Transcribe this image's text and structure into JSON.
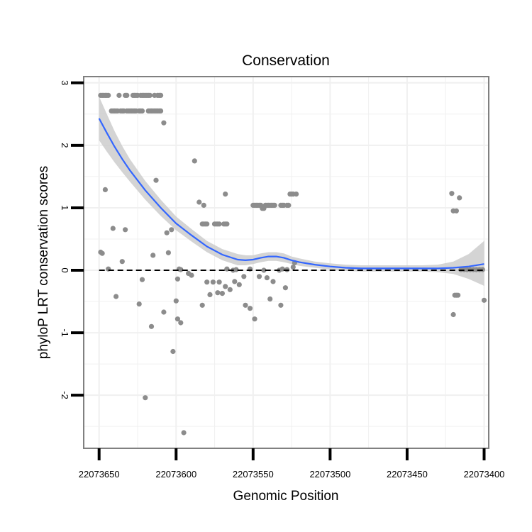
{
  "chart_data": {
    "type": "scatter",
    "title": "Conservation",
    "xlabel": "Genomic Position",
    "ylabel": "phyloP LRT conservation scores",
    "x_reversed": true,
    "xlim": [
      22073660,
      22073397
    ],
    "ylim": [
      -2.85,
      3.1
    ],
    "x_ticks": [
      22073650,
      22073600,
      22073550,
      22073500,
      22073450,
      22073400
    ],
    "x_tick_labels": [
      "22073650",
      "22073600",
      "22073550",
      "22073500",
      "22073450",
      "22073400"
    ],
    "y_ticks": [
      -2,
      -1,
      0,
      1,
      2,
      3
    ],
    "y_tick_labels": [
      "-2",
      "-1",
      "0",
      "1",
      "2",
      "3"
    ],
    "reference_line": {
      "y": 0,
      "style": "dashed",
      "color": "#000000"
    },
    "colors": {
      "points": "#8c8c8c",
      "smooth_line": "#3366ff",
      "confidence_band": "#cccccc",
      "panel_border": "#808080",
      "grid": "#f0f0f0"
    },
    "points": [
      {
        "x": 22073649,
        "y": 2.8
      },
      {
        "x": 22073648,
        "y": 2.8
      },
      {
        "x": 22073647,
        "y": 2.8
      },
      {
        "x": 22073646,
        "y": 2.8
      },
      {
        "x": 22073645,
        "y": 2.8
      },
      {
        "x": 22073644,
        "y": 2.8
      },
      {
        "x": 22073637,
        "y": 2.8
      },
      {
        "x": 22073633,
        "y": 2.8
      },
      {
        "x": 22073632,
        "y": 2.8
      },
      {
        "x": 22073628,
        "y": 2.8
      },
      {
        "x": 22073627,
        "y": 2.8
      },
      {
        "x": 22073626,
        "y": 2.8
      },
      {
        "x": 22073625,
        "y": 2.8
      },
      {
        "x": 22073623,
        "y": 2.8
      },
      {
        "x": 22073622,
        "y": 2.8
      },
      {
        "x": 22073621,
        "y": 2.8
      },
      {
        "x": 22073620,
        "y": 2.8
      },
      {
        "x": 22073619,
        "y": 2.8
      },
      {
        "x": 22073618,
        "y": 2.8
      },
      {
        "x": 22073617,
        "y": 2.8
      },
      {
        "x": 22073614,
        "y": 2.8
      },
      {
        "x": 22073612,
        "y": 2.8
      },
      {
        "x": 22073611,
        "y": 2.8
      },
      {
        "x": 22073610,
        "y": 2.8
      },
      {
        "x": 22073642,
        "y": 2.55
      },
      {
        "x": 22073641,
        "y": 2.55
      },
      {
        "x": 22073640,
        "y": 2.55
      },
      {
        "x": 22073639,
        "y": 2.55
      },
      {
        "x": 22073638,
        "y": 2.55
      },
      {
        "x": 22073636,
        "y": 2.55
      },
      {
        "x": 22073635,
        "y": 2.55
      },
      {
        "x": 22073634,
        "y": 2.55
      },
      {
        "x": 22073632,
        "y": 2.55
      },
      {
        "x": 22073631,
        "y": 2.55
      },
      {
        "x": 22073630,
        "y": 2.55
      },
      {
        "x": 22073629,
        "y": 2.55
      },
      {
        "x": 22073628,
        "y": 2.55
      },
      {
        "x": 22073627,
        "y": 2.55
      },
      {
        "x": 22073626,
        "y": 2.55
      },
      {
        "x": 22073624,
        "y": 2.55
      },
      {
        "x": 22073623,
        "y": 2.55
      },
      {
        "x": 22073622,
        "y": 2.55
      },
      {
        "x": 22073618,
        "y": 2.55
      },
      {
        "x": 22073617,
        "y": 2.55
      },
      {
        "x": 22073616,
        "y": 2.55
      },
      {
        "x": 22073615,
        "y": 2.55
      },
      {
        "x": 22073614,
        "y": 2.55
      },
      {
        "x": 22073613,
        "y": 2.55
      },
      {
        "x": 22073612,
        "y": 2.55
      },
      {
        "x": 22073611,
        "y": 2.55
      },
      {
        "x": 22073610,
        "y": 2.55
      },
      {
        "x": 22073608,
        "y": 2.36
      },
      {
        "x": 22073588,
        "y": 1.75
      },
      {
        "x": 22073646,
        "y": 1.29
      },
      {
        "x": 22073613,
        "y": 1.44
      },
      {
        "x": 22073568,
        "y": 1.22
      },
      {
        "x": 22073585,
        "y": 1.09
      },
      {
        "x": 22073582,
        "y": 1.04
      },
      {
        "x": 22073583,
        "y": 0.74
      },
      {
        "x": 22073582,
        "y": 0.74
      },
      {
        "x": 22073581,
        "y": 0.74
      },
      {
        "x": 22073580,
        "y": 0.74
      },
      {
        "x": 22073575,
        "y": 0.74
      },
      {
        "x": 22073574,
        "y": 0.74
      },
      {
        "x": 22073573,
        "y": 0.74
      },
      {
        "x": 22073572,
        "y": 0.74
      },
      {
        "x": 22073569,
        "y": 0.74
      },
      {
        "x": 22073568,
        "y": 0.74
      },
      {
        "x": 22073567,
        "y": 0.74
      },
      {
        "x": 22073550,
        "y": 1.04
      },
      {
        "x": 22073549,
        "y": 1.04
      },
      {
        "x": 22073548,
        "y": 1.04
      },
      {
        "x": 22073547,
        "y": 1.04
      },
      {
        "x": 22073546,
        "y": 1.04
      },
      {
        "x": 22073545,
        "y": 1.04
      },
      {
        "x": 22073544,
        "y": 0.99
      },
      {
        "x": 22073543,
        "y": 0.99
      },
      {
        "x": 22073542,
        "y": 1.04
      },
      {
        "x": 22073541,
        "y": 1.04
      },
      {
        "x": 22073540,
        "y": 1.04
      },
      {
        "x": 22073539,
        "y": 1.04
      },
      {
        "x": 22073538,
        "y": 1.04
      },
      {
        "x": 22073537,
        "y": 1.04
      },
      {
        "x": 22073536,
        "y": 1.04
      },
      {
        "x": 22073532,
        "y": 1.04
      },
      {
        "x": 22073531,
        "y": 1.04
      },
      {
        "x": 22073530,
        "y": 1.04
      },
      {
        "x": 22073528,
        "y": 1.04
      },
      {
        "x": 22073527,
        "y": 1.04
      },
      {
        "x": 22073526,
        "y": 1.22
      },
      {
        "x": 22073525,
        "y": 1.22
      },
      {
        "x": 22073524,
        "y": 1.22
      },
      {
        "x": 22073522,
        "y": 1.22
      },
      {
        "x": 22073641,
        "y": 0.67
      },
      {
        "x": 22073633,
        "y": 0.65
      },
      {
        "x": 22073606,
        "y": 0.6
      },
      {
        "x": 22073603,
        "y": 0.65
      },
      {
        "x": 22073649,
        "y": 0.29
      },
      {
        "x": 22073648,
        "y": 0.27
      },
      {
        "x": 22073635,
        "y": 0.14
      },
      {
        "x": 22073615,
        "y": 0.24
      },
      {
        "x": 22073605,
        "y": 0.28
      },
      {
        "x": 22073644,
        "y": 0.02
      },
      {
        "x": 22073598,
        "y": 0.02
      },
      {
        "x": 22073597,
        "y": 0.01
      },
      {
        "x": 22073592,
        "y": -0.05
      },
      {
        "x": 22073590,
        "y": -0.08
      },
      {
        "x": 22073567,
        "y": 0.02
      },
      {
        "x": 22073563,
        "y": 0.0
      },
      {
        "x": 22073561,
        "y": 0.01
      },
      {
        "x": 22073552,
        "y": 0.02
      },
      {
        "x": 22073543,
        "y": 0.0
      },
      {
        "x": 22073533,
        "y": 0.0
      },
      {
        "x": 22073531,
        "y": 0.02
      },
      {
        "x": 22073528,
        "y": 0.01
      },
      {
        "x": 22073524,
        "y": 0.05
      },
      {
        "x": 22073523,
        "y": 0.12
      },
      {
        "x": 22073639,
        "y": -0.42
      },
      {
        "x": 22073622,
        "y": -0.15
      },
      {
        "x": 22073599,
        "y": -0.14
      },
      {
        "x": 22073580,
        "y": -0.19
      },
      {
        "x": 22073576,
        "y": -0.19
      },
      {
        "x": 22073572,
        "y": -0.19
      },
      {
        "x": 22073570,
        "y": -0.37
      },
      {
        "x": 22073568,
        "y": -0.26
      },
      {
        "x": 22073565,
        "y": -0.31
      },
      {
        "x": 22073562,
        "y": -0.18
      },
      {
        "x": 22073559,
        "y": -0.23
      },
      {
        "x": 22073556,
        "y": -0.1
      },
      {
        "x": 22073546,
        "y": -0.1
      },
      {
        "x": 22073541,
        "y": -0.12
      },
      {
        "x": 22073537,
        "y": -0.18
      },
      {
        "x": 22073529,
        "y": -0.28
      },
      {
        "x": 22073578,
        "y": -0.39
      },
      {
        "x": 22073573,
        "y": -0.36
      },
      {
        "x": 22073583,
        "y": -0.56
      },
      {
        "x": 22073555,
        "y": -0.56
      },
      {
        "x": 22073552,
        "y": -0.61
      },
      {
        "x": 22073539,
        "y": -0.46
      },
      {
        "x": 22073532,
        "y": -0.56
      },
      {
        "x": 22073549,
        "y": -0.78
      },
      {
        "x": 22073624,
        "y": -0.54
      },
      {
        "x": 22073608,
        "y": -0.67
      },
      {
        "x": 22073600,
        "y": -0.49
      },
      {
        "x": 22073599,
        "y": -0.78
      },
      {
        "x": 22073597,
        "y": -0.84
      },
      {
        "x": 22073616,
        "y": -0.9
      },
      {
        "x": 22073602,
        "y": -1.3
      },
      {
        "x": 22073620,
        "y": -2.04
      },
      {
        "x": 22073595,
        "y": -2.6
      },
      {
        "x": 22073421,
        "y": 1.23
      },
      {
        "x": 22073420,
        "y": 0.95
      },
      {
        "x": 22073418,
        "y": 0.95
      },
      {
        "x": 22073416,
        "y": 1.16
      },
      {
        "x": 22073419,
        "y": -0.4
      },
      {
        "x": 22073418,
        "y": -0.4
      },
      {
        "x": 22073417,
        "y": -0.4
      },
      {
        "x": 22073420,
        "y": -0.71
      },
      {
        "x": 22073400,
        "y": -0.48
      },
      {
        "x": 22073415,
        "y": 0.01
      },
      {
        "x": 22073413,
        "y": 0.01
      },
      {
        "x": 22073411,
        "y": 0.01
      },
      {
        "x": 22073409,
        "y": 0.01
      },
      {
        "x": 22073407,
        "y": 0.01
      },
      {
        "x": 22073405,
        "y": 0.01
      },
      {
        "x": 22073403,
        "y": 0.01
      },
      {
        "x": 22073401,
        "y": 0.01
      }
    ],
    "smooth": {
      "x": [
        22073650,
        22073645,
        22073640,
        22073635,
        22073630,
        22073620,
        22073610,
        22073600,
        22073590,
        22073580,
        22073570,
        22073560,
        22073555,
        22073550,
        22073545,
        22073540,
        22073535,
        22073530,
        22073525,
        22073520,
        22073510,
        22073500,
        22073490,
        22073480,
        22073470,
        22073460,
        22073450,
        22073440,
        22073430,
        22073420,
        22073410,
        22073400
      ],
      "y": [
        2.43,
        2.2,
        1.98,
        1.78,
        1.6,
        1.28,
        1.0,
        0.75,
        0.56,
        0.38,
        0.25,
        0.17,
        0.16,
        0.17,
        0.2,
        0.22,
        0.22,
        0.2,
        0.16,
        0.13,
        0.09,
        0.06,
        0.04,
        0.03,
        0.03,
        0.03,
        0.03,
        0.03,
        0.03,
        0.04,
        0.06,
        0.1
      ],
      "lower": [
        2.08,
        1.9,
        1.73,
        1.57,
        1.42,
        1.13,
        0.87,
        0.64,
        0.46,
        0.29,
        0.16,
        0.08,
        0.08,
        0.1,
        0.13,
        0.15,
        0.15,
        0.13,
        0.1,
        0.07,
        0.04,
        0.01,
        -0.01,
        -0.02,
        -0.02,
        -0.02,
        -0.02,
        -0.02,
        -0.03,
        -0.06,
        -0.14,
        -0.25
      ],
      "upper": [
        2.78,
        2.5,
        2.23,
        1.99,
        1.78,
        1.43,
        1.13,
        0.86,
        0.66,
        0.47,
        0.34,
        0.26,
        0.24,
        0.24,
        0.27,
        0.29,
        0.29,
        0.27,
        0.22,
        0.19,
        0.14,
        0.11,
        0.09,
        0.08,
        0.08,
        0.08,
        0.08,
        0.08,
        0.09,
        0.14,
        0.26,
        0.47
      ]
    }
  }
}
